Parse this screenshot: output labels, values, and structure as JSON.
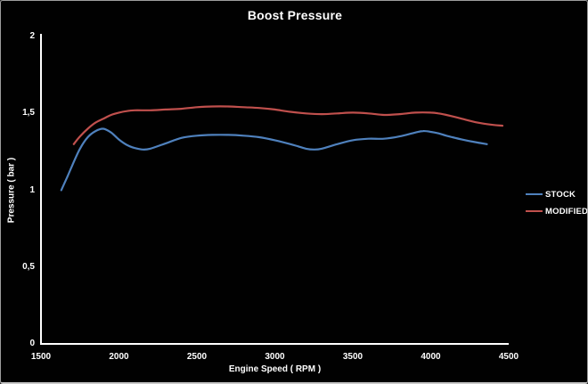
{
  "window": {
    "background": "#010101",
    "frame_border_color": "#9d9d9d",
    "text_color": "#ffffff",
    "axis_color": "#ffffff"
  },
  "chart_data": {
    "type": "line",
    "title": "Boost Pressure",
    "xlabel": "Engine Speed ( RPM )",
    "ylabel": "Pressure ( bar )",
    "xlim": [
      1500,
      4500
    ],
    "ylim": [
      0,
      2
    ],
    "grid": false,
    "legend_position": "right",
    "x_tick_values": [
      1500,
      2000,
      2500,
      3000,
      3500,
      4000,
      4500
    ],
    "x_tick_labels": [
      "1500",
      "2000",
      "2500",
      "3000",
      "3500",
      "4000",
      "4500"
    ],
    "y_tick_values": [
      0,
      0.5,
      1,
      1.5,
      2
    ],
    "y_tick_labels": [
      "0",
      "0,5",
      "1",
      "1,5",
      "2"
    ],
    "series": [
      {
        "name": "STOCK",
        "color": "#4F81BD",
        "points": [
          [
            1630,
            1.0
          ],
          [
            1670,
            1.09
          ],
          [
            1700,
            1.16
          ],
          [
            1750,
            1.27
          ],
          [
            1800,
            1.345
          ],
          [
            1850,
            1.385
          ],
          [
            1900,
            1.4
          ],
          [
            1950,
            1.375
          ],
          [
            2000,
            1.33
          ],
          [
            2050,
            1.295
          ],
          [
            2100,
            1.275
          ],
          [
            2150,
            1.265
          ],
          [
            2200,
            1.27
          ],
          [
            2300,
            1.305
          ],
          [
            2400,
            1.34
          ],
          [
            2500,
            1.355
          ],
          [
            2600,
            1.36
          ],
          [
            2700,
            1.36
          ],
          [
            2800,
            1.355
          ],
          [
            2900,
            1.345
          ],
          [
            3000,
            1.325
          ],
          [
            3100,
            1.3
          ],
          [
            3150,
            1.285
          ],
          [
            3200,
            1.27
          ],
          [
            3250,
            1.265
          ],
          [
            3300,
            1.27
          ],
          [
            3400,
            1.3
          ],
          [
            3500,
            1.325
          ],
          [
            3600,
            1.335
          ],
          [
            3700,
            1.335
          ],
          [
            3800,
            1.35
          ],
          [
            3900,
            1.375
          ],
          [
            3950,
            1.385
          ],
          [
            4000,
            1.38
          ],
          [
            4050,
            1.37
          ],
          [
            4100,
            1.355
          ],
          [
            4200,
            1.33
          ],
          [
            4300,
            1.31
          ],
          [
            4360,
            1.3
          ]
        ]
      },
      {
        "name": "MODIFIED",
        "color": "#C0504D",
        "points": [
          [
            1710,
            1.3
          ],
          [
            1750,
            1.35
          ],
          [
            1800,
            1.4
          ],
          [
            1850,
            1.44
          ],
          [
            1900,
            1.465
          ],
          [
            1950,
            1.49
          ],
          [
            2000,
            1.505
          ],
          [
            2050,
            1.515
          ],
          [
            2100,
            1.52
          ],
          [
            2200,
            1.52
          ],
          [
            2300,
            1.525
          ],
          [
            2400,
            1.53
          ],
          [
            2500,
            1.54
          ],
          [
            2600,
            1.545
          ],
          [
            2700,
            1.545
          ],
          [
            2800,
            1.54
          ],
          [
            2900,
            1.535
          ],
          [
            3000,
            1.525
          ],
          [
            3100,
            1.51
          ],
          [
            3200,
            1.5
          ],
          [
            3300,
            1.495
          ],
          [
            3400,
            1.5
          ],
          [
            3500,
            1.505
          ],
          [
            3600,
            1.5
          ],
          [
            3700,
            1.49
          ],
          [
            3800,
            1.495
          ],
          [
            3900,
            1.505
          ],
          [
            4000,
            1.505
          ],
          [
            4050,
            1.5
          ],
          [
            4100,
            1.49
          ],
          [
            4200,
            1.465
          ],
          [
            4300,
            1.44
          ],
          [
            4400,
            1.425
          ],
          [
            4460,
            1.42
          ]
        ]
      }
    ]
  }
}
